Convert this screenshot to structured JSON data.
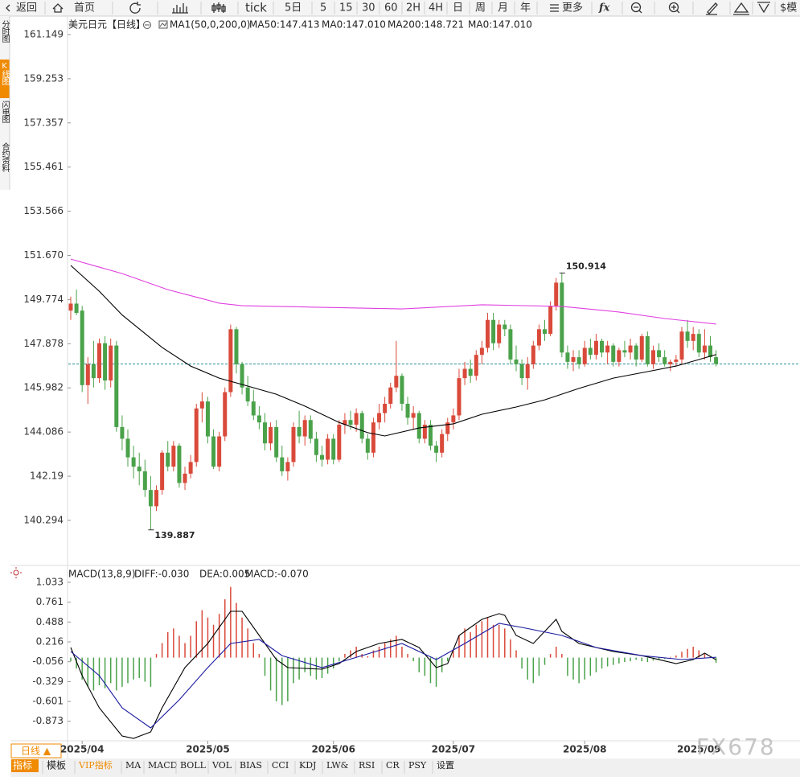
{
  "toolbar": {
    "items": [
      "返回",
      "首页",
      "tick",
      "5日",
      "5",
      "15",
      "30",
      "60",
      "2H",
      "4H",
      "日",
      "周",
      "月",
      "年",
      "更多",
      "fx",
      "$模"
    ]
  },
  "side_tabs": [
    "分时图",
    "K线图",
    "闪电图",
    "合约资料"
  ],
  "chart_data": [
    {
      "type": "candlestick",
      "header": [
        {
          "text": "美元日元",
          "color": "#000000"
        },
        {
          "text": "【日线】",
          "color": "#f08a00"
        },
        {
          "text": "MA1(50,0,200,0)",
          "color": "#000000"
        },
        {
          "text": "MA50:147.413",
          "color": "#000000"
        },
        {
          "text": "MA0:147.010",
          "color": "#1a1aa0"
        },
        {
          "text": "MA200:148.721",
          "color": "#e040e0"
        },
        {
          "text": "MA0:147.010",
          "color": "#f08a00"
        }
      ],
      "up_color": "#d94a3a",
      "down_color": "#4aa24a",
      "ohlc": [
        [
          149.3,
          149.9,
          148.9,
          149.6
        ],
        [
          149.6,
          150.2,
          149.1,
          149.2
        ],
        [
          149.3,
          149.5,
          145.8,
          146.1
        ],
        [
          146.1,
          147.3,
          145.3,
          147.0
        ],
        [
          147.0,
          148.0,
          146.0,
          146.4
        ],
        [
          146.4,
          148.1,
          146.2,
          147.9
        ],
        [
          147.9,
          148.2,
          145.9,
          146.3
        ],
        [
          146.3,
          148.1,
          146.0,
          147.8
        ],
        [
          147.8,
          148.0,
          144.1,
          144.3
        ],
        [
          144.3,
          144.8,
          143.3,
          143.8
        ],
        [
          143.8,
          144.2,
          142.6,
          143.0
        ],
        [
          143.0,
          143.5,
          142.1,
          142.6
        ],
        [
          142.6,
          143.2,
          141.8,
          142.4
        ],
        [
          142.4,
          142.9,
          141.3,
          141.6
        ],
        [
          141.6,
          142.2,
          139.887,
          140.9
        ],
        [
          140.9,
          141.8,
          140.7,
          141.6
        ],
        [
          141.6,
          143.3,
          141.4,
          143.2
        ],
        [
          143.2,
          143.7,
          142.4,
          142.6
        ],
        [
          142.6,
          143.7,
          142.4,
          143.5
        ],
        [
          143.5,
          143.6,
          141.7,
          141.9
        ],
        [
          141.9,
          142.6,
          141.6,
          142.3
        ],
        [
          142.3,
          143.1,
          142.1,
          142.8
        ],
        [
          142.8,
          145.3,
          142.6,
          145.1
        ],
        [
          145.1,
          145.8,
          144.5,
          145.4
        ],
        [
          145.4,
          145.6,
          143.6,
          143.9
        ],
        [
          143.9,
          144.2,
          142.5,
          142.6
        ],
        [
          142.6,
          144.1,
          142.4,
          143.9
        ],
        [
          143.9,
          146.0,
          143.7,
          145.8
        ],
        [
          145.8,
          148.7,
          145.6,
          148.5
        ],
        [
          148.5,
          148.6,
          146.6,
          147.0
        ],
        [
          147.0,
          147.1,
          145.7,
          146.0
        ],
        [
          146.0,
          146.5,
          145.2,
          145.4
        ],
        [
          145.4,
          145.9,
          144.6,
          144.8
        ],
        [
          144.8,
          145.2,
          144.2,
          144.5
        ],
        [
          144.5,
          144.9,
          143.3,
          143.6
        ],
        [
          143.6,
          144.5,
          143.3,
          144.3
        ],
        [
          144.3,
          144.6,
          142.8,
          143.0
        ],
        [
          143.0,
          143.5,
          142.2,
          142.4
        ],
        [
          142.4,
          143.0,
          142.0,
          142.8
        ],
        [
          142.8,
          144.5,
          142.6,
          144.3
        ],
        [
          144.3,
          145.0,
          143.6,
          143.9
        ],
        [
          143.9,
          144.8,
          143.5,
          144.6
        ],
        [
          144.6,
          144.8,
          143.6,
          143.8
        ],
        [
          143.8,
          144.1,
          142.8,
          143.1
        ],
        [
          143.1,
          143.5,
          142.6,
          142.9
        ],
        [
          142.9,
          144.0,
          142.7,
          143.8
        ],
        [
          143.8,
          144.0,
          142.7,
          142.9
        ],
        [
          142.9,
          144.6,
          142.8,
          144.4
        ],
        [
          144.4,
          144.9,
          144.0,
          144.6
        ],
        [
          144.6,
          145.0,
          144.2,
          144.4
        ],
        [
          144.4,
          145.1,
          144.1,
          144.9
        ],
        [
          144.9,
          145.0,
          143.6,
          143.8
        ],
        [
          143.8,
          144.0,
          142.9,
          143.2
        ],
        [
          143.2,
          144.7,
          143.0,
          144.5
        ],
        [
          144.5,
          145.3,
          144.2,
          144.9
        ],
        [
          144.9,
          145.6,
          144.5,
          145.3
        ],
        [
          145.3,
          146.2,
          145.1,
          146.0
        ],
        [
          146.0,
          148.0,
          145.8,
          146.5
        ],
        [
          146.5,
          146.6,
          145.0,
          145.3
        ],
        [
          145.3,
          145.6,
          144.4,
          144.7
        ],
        [
          144.7,
          145.2,
          144.2,
          144.9
        ],
        [
          144.9,
          145.0,
          143.6,
          143.8
        ],
        [
          143.8,
          144.6,
          143.6,
          144.4
        ],
        [
          144.4,
          144.6,
          143.3,
          143.5
        ],
        [
          143.5,
          143.7,
          142.8,
          143.2
        ],
        [
          143.2,
          144.2,
          143.0,
          144.0
        ],
        [
          144.0,
          144.7,
          143.7,
          144.5
        ],
        [
          144.5,
          145.1,
          144.2,
          144.8
        ],
        [
          144.8,
          146.8,
          144.6,
          146.4
        ],
        [
          146.4,
          147.1,
          146.1,
          146.8
        ],
        [
          146.8,
          147.2,
          146.2,
          146.5
        ],
        [
          146.5,
          147.6,
          146.3,
          147.4
        ],
        [
          147.4,
          148.0,
          147.0,
          147.7
        ],
        [
          147.7,
          149.2,
          147.5,
          148.9
        ],
        [
          148.9,
          149.2,
          147.6,
          147.9
        ],
        [
          147.9,
          148.9,
          147.7,
          148.7
        ],
        [
          148.7,
          148.9,
          148.2,
          148.5
        ],
        [
          148.5,
          148.7,
          147.0,
          147.2
        ],
        [
          147.2,
          147.8,
          146.7,
          147.0
        ],
        [
          147.0,
          147.2,
          146.1,
          146.4
        ],
        [
          146.4,
          147.3,
          145.9,
          147.0
        ],
        [
          147.0,
          148.0,
          146.8,
          147.8
        ],
        [
          147.8,
          148.7,
          147.6,
          148.5
        ],
        [
          148.5,
          148.9,
          148.0,
          148.3
        ],
        [
          148.3,
          149.7,
          148.2,
          149.5
        ],
        [
          149.5,
          150.7,
          149.3,
          150.5
        ],
        [
          150.5,
          150.914,
          147.3,
          147.5
        ],
        [
          147.5,
          147.8,
          146.8,
          147.1
        ],
        [
          147.1,
          147.6,
          146.7,
          147.3
        ],
        [
          147.3,
          147.6,
          146.8,
          147.0
        ],
        [
          147.0,
          148.0,
          146.9,
          147.7
        ],
        [
          147.7,
          148.1,
          147.2,
          147.4
        ],
        [
          147.4,
          148.3,
          147.2,
          148.0
        ],
        [
          148.0,
          148.1,
          147.3,
          147.5
        ],
        [
          147.5,
          148.0,
          147.0,
          147.8
        ],
        [
          147.8,
          147.9,
          146.9,
          147.1
        ],
        [
          147.1,
          147.7,
          146.9,
          147.6
        ],
        [
          147.6,
          148.0,
          147.3,
          147.5
        ],
        [
          147.5,
          148.1,
          147.2,
          147.8
        ],
        [
          147.8,
          147.9,
          146.9,
          147.2
        ],
        [
          147.2,
          148.3,
          147.1,
          148.2
        ],
        [
          148.2,
          148.4,
          146.9,
          147.0
        ],
        [
          147.0,
          147.8,
          146.8,
          147.6
        ],
        [
          147.6,
          147.9,
          147.1,
          147.3
        ],
        [
          147.3,
          147.6,
          146.9,
          147.0
        ],
        [
          147.0,
          147.2,
          146.7,
          147.1
        ],
        [
          147.1,
          147.4,
          146.9,
          147.2
        ],
        [
          147.2,
          148.6,
          147.0,
          148.4
        ],
        [
          148.4,
          148.9,
          147.7,
          148.0
        ],
        [
          148.0,
          148.6,
          147.6,
          148.3
        ],
        [
          148.3,
          148.5,
          147.3,
          147.5
        ],
        [
          147.5,
          148.5,
          147.2,
          147.8
        ],
        [
          147.8,
          148.2,
          147.1,
          147.3
        ],
        [
          147.3,
          147.6,
          146.9,
          147.01
        ]
      ],
      "series": [
        {
          "color": "#000000",
          "x": [
            0,
            5,
            9,
            16,
            21,
            26,
            30,
            36,
            41,
            47,
            52,
            55,
            61,
            67,
            72,
            78,
            83,
            89,
            95,
            101,
            106,
            110,
            113
          ],
          "values": [
            151.24,
            150.13,
            149.11,
            147.72,
            146.92,
            146.4,
            146.13,
            145.71,
            145.2,
            144.5,
            144.06,
            143.92,
            144.26,
            144.44,
            144.85,
            145.16,
            145.47,
            145.96,
            146.4,
            146.68,
            146.92,
            147.2,
            147.413
          ]
        },
        {
          "color": "#e040e0",
          "x": [
            0,
            9,
            17,
            26,
            30,
            58,
            72,
            86,
            96,
            104,
            113
          ],
          "values": [
            151.51,
            150.89,
            150.2,
            149.62,
            149.51,
            149.37,
            149.55,
            149.48,
            149.24,
            148.96,
            148.721
          ]
        }
      ],
      "last_price": 147.01,
      "last_price_color": "#2a8fa0",
      "annotations": [
        {
          "x": 86,
          "value": 150.914,
          "color": "#d03a3a"
        },
        {
          "x": 14,
          "value": 139.887,
          "color": "#4a9a4a"
        }
      ],
      "xlim": [
        -0.42,
        127.7
      ],
      "ylim": [
        138.808,
        161.425
      ],
      "yticks": [
        161.149,
        159.253,
        157.357,
        155.461,
        153.566,
        {
          "value": 151.67,
          "label": "151.670"
        },
        149.774,
        147.878,
        145.982,
        144.086,
        142.19,
        140.294
      ]
    },
    {
      "type": "macd",
      "header": [
        {
          "text": "MACD(13,8,9)",
          "color": "#000000"
        },
        {
          "text": "DIFF:-0.030",
          "color": "#000000"
        },
        {
          "text": "DEA:0.005",
          "color": "#1a1aa0"
        },
        {
          "text": "MACD:-0.070",
          "color": "#e040e0"
        }
      ],
      "up_color": "#d94a3a",
      "down_color": "#4aa24a",
      "histogram": [
        -0.05,
        -0.15,
        -0.3,
        -0.4,
        -0.45,
        -0.38,
        -0.42,
        -0.35,
        -0.45,
        -0.4,
        -0.35,
        -0.3,
        -0.28,
        -0.33,
        -0.4,
        0.05,
        0.2,
        0.35,
        0.4,
        0.3,
        0.2,
        0.3,
        0.5,
        0.65,
        0.55,
        0.45,
        0.6,
        0.8,
        0.97,
        0.75,
        0.55,
        0.4,
        0.2,
        0.05,
        -0.25,
        -0.45,
        -0.6,
        -0.65,
        -0.6,
        -0.35,
        -0.3,
        -0.2,
        -0.25,
        -0.3,
        -0.28,
        -0.22,
        -0.15,
        -0.05,
        0.05,
        0.1,
        0.15,
        0.05,
        0.02,
        0.1,
        0.15,
        0.2,
        0.25,
        0.3,
        0.15,
        0.05,
        -0.05,
        -0.2,
        -0.25,
        -0.35,
        -0.4,
        -0.2,
        -0.05,
        0.1,
        0.3,
        0.4,
        0.35,
        0.45,
        0.5,
        0.55,
        0.45,
        0.45,
        0.4,
        0.25,
        0.1,
        -0.15,
        -0.3,
        -0.35,
        -0.25,
        -0.1,
        0.05,
        0.15,
        0.05,
        -0.25,
        -0.3,
        -0.35,
        -0.3,
        -0.25,
        -0.2,
        -0.15,
        -0.12,
        -0.1,
        -0.08,
        -0.06,
        -0.05,
        -0.03,
        -0.05,
        -0.06,
        -0.04,
        -0.03,
        -0.02,
        0.01,
        0.03,
        0.08,
        0.12,
        0.15,
        0.1,
        0.05,
        0,
        -0.07
      ],
      "series": [
        {
          "color": "#000000",
          "x": [
            0,
            2,
            5,
            9,
            11,
            14,
            16,
            20,
            24,
            28,
            30,
            33,
            36,
            38,
            44,
            47,
            50,
            54,
            58,
            61,
            64,
            66,
            68,
            72,
            75,
            76,
            78,
            81,
            85,
            86,
            89,
            95,
            100,
            106,
            109,
            111,
            113
          ],
          "values": [
            0.139,
            -0.247,
            -0.689,
            -1.075,
            -1.108,
            -1.02,
            -0.689,
            -0.137,
            0.194,
            0.636,
            0.636,
            0.305,
            -0.027,
            -0.137,
            -0.159,
            -0.082,
            0.084,
            0.194,
            0.249,
            0.139,
            -0.137,
            -0.082,
            0.305,
            0.525,
            0.603,
            0.58,
            0.305,
            0.194,
            0.525,
            0.36,
            0.194,
            0.084,
            0.028,
            -0.082,
            -0.027,
            0.062,
            -0.03
          ]
        },
        {
          "color": "#1a1aa0",
          "x": [
            0,
            5,
            9,
            14,
            19,
            24,
            28,
            33,
            37,
            44,
            51,
            58,
            64,
            69,
            75,
            79,
            86,
            92,
            100,
            107,
            113
          ],
          "values": [
            0.084,
            -0.247,
            -0.689,
            -0.965,
            -0.579,
            -0.137,
            0.194,
            0.249,
            0.028,
            -0.137,
            0.028,
            0.194,
            -0.027,
            0.194,
            0.47,
            0.415,
            0.305,
            0.139,
            0.028,
            -0.027,
            0.005
          ]
        }
      ],
      "xlim": [
        -0.42,
        127.7
      ],
      "ylim": [
        -1.141,
        1.132
      ],
      "yticks": [
        1.033,
        0.761,
        0.488,
        0.216,
        -0.056,
        -0.329,
        -0.601,
        -0.873
      ],
      "xticks": [
        {
          "value": 2,
          "label": "2025/04"
        },
        {
          "value": 24,
          "label": "2025/05"
        },
        {
          "value": 46,
          "label": "2025/06"
        },
        {
          "value": 67,
          "label": "2025/07"
        },
        {
          "value": 90,
          "label": "2025/08"
        },
        {
          "value": 110,
          "label": "2025/09"
        }
      ]
    }
  ],
  "bottom_bar": {
    "period": "日线 ▲",
    "tabs": [
      "指标",
      "模板",
      "VIP指标",
      "MA",
      "MACD",
      "BOLL",
      "VOL",
      "BIAS",
      "CCI",
      "KDJ",
      "LW&",
      "RSI",
      "CR",
      "PSY",
      "设置"
    ]
  },
  "watermark": "FX678"
}
